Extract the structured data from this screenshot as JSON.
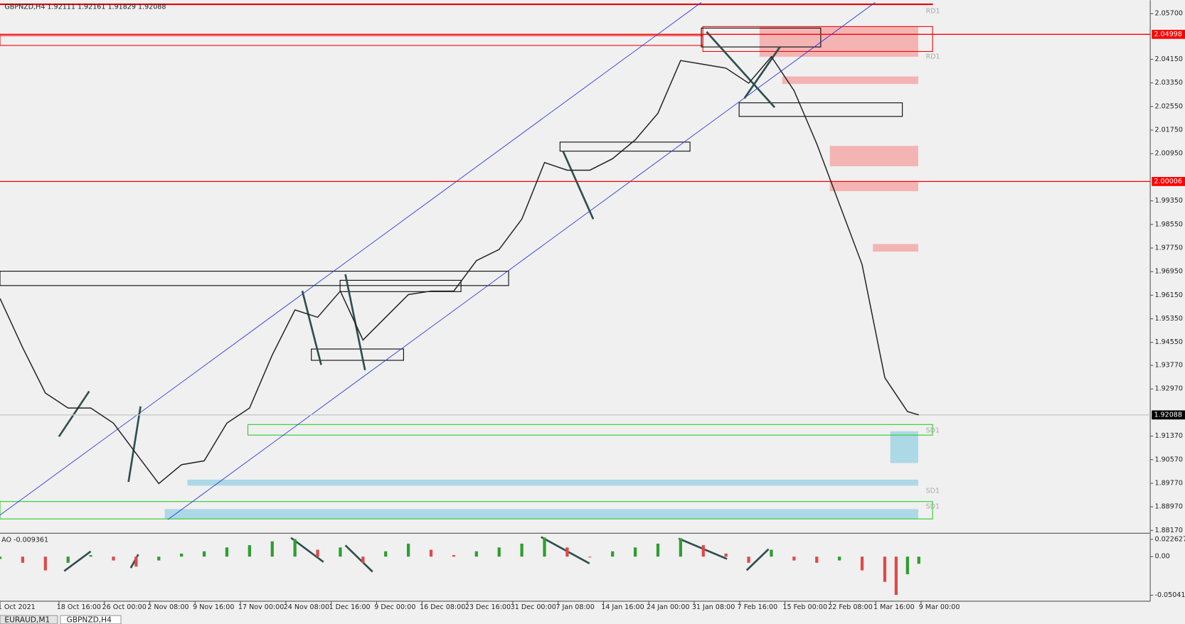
{
  "chart_data": [
    {
      "type": "line",
      "title": "GBPNZD,H4  1.92111 1.92161 1.91829 1.92088",
      "x": [
        0,
        10,
        20,
        30,
        40,
        50,
        60,
        70,
        80,
        90,
        100,
        110,
        120,
        130,
        140,
        150,
        160,
        170,
        180,
        190,
        200,
        210,
        220,
        230,
        240,
        250,
        260,
        270,
        280,
        290,
        300,
        310,
        320,
        330,
        340,
        350,
        360,
        370,
        380,
        390,
        400,
        405
      ],
      "series": [
        {
          "color": "#222222",
          "values": [
            1.9604,
            1.9437,
            1.9283,
            1.9232,
            1.9232,
            1.9181,
            1.9078,
            1.8976,
            1.904,
            1.9053,
            1.9181,
            1.9232,
            1.9412,
            1.9565,
            1.954,
            1.9629,
            1.9463,
            1.954,
            1.9617,
            1.9629,
            1.9629,
            1.9732,
            1.977,
            1.9873,
            2.0065,
            2.0039,
            2.0039,
            2.0078,
            2.0142,
            2.0232,
            2.0411,
            2.0398,
            2.0385,
            2.0334,
            2.0424,
            2.0309,
            2.0129,
            1.9924,
            1.9719,
            1.9335,
            1.922,
            1.92088
          ]
        }
      ],
      "xlim": [
        0,
        507
      ],
      "xticks": [
        {
          "value": 0,
          "label": "1 Oct 2021"
        },
        {
          "value": 26,
          "label": "18 Oct 16:00"
        },
        {
          "value": 46,
          "label": "26 Oct 00:00"
        },
        {
          "value": 66,
          "label": "2 Nov 08:00"
        },
        {
          "value": 86,
          "label": "9 Nov 16:00"
        },
        {
          "value": 106,
          "label": "17 Nov 00:00"
        },
        {
          "value": 126,
          "label": "24 Nov 08:00"
        },
        {
          "value": 146,
          "label": "1 Dec 16:00"
        },
        {
          "value": 166,
          "label": "9 Dec 00:00"
        },
        {
          "value": 186,
          "label": "16 Dec 08:00"
        },
        {
          "value": 206,
          "label": "23 Dec 16:00"
        },
        {
          "value": 226,
          "label": "31 Dec 00:00"
        },
        {
          "value": 246,
          "label": "7 Jan 08:00"
        },
        {
          "value": 266,
          "label": "14 Jan 16:00"
        },
        {
          "value": 286,
          "label": "24 Jan 00:00"
        },
        {
          "value": 306,
          "label": "31 Jan 08:00"
        },
        {
          "value": 326,
          "label": "7 Feb 16:00"
        },
        {
          "value": 346,
          "label": "15 Feb 00:00"
        },
        {
          "value": 366,
          "label": "22 Feb 08:00"
        },
        {
          "value": 386,
          "label": "1 Mar 16:00"
        },
        {
          "value": 406,
          "label": "9 Mar 00:00"
        }
      ],
      "ylim": [
        1.881,
        2.0603
      ],
      "yticks": [
        {
          "value": 2.057,
          "label": "2.05700"
        },
        {
          "value": 2.0415,
          "label": "2.04150"
        },
        {
          "value": 2.0335,
          "label": "2.03350"
        },
        {
          "value": 2.0255,
          "label": "2.02550"
        },
        {
          "value": 2.0175,
          "label": "2.01750"
        },
        {
          "value": 2.0095,
          "label": "2.00950"
        },
        {
          "value": 1.9935,
          "label": "1.99350"
        },
        {
          "value": 1.9855,
          "label": "1.98550"
        },
        {
          "value": 1.9775,
          "label": "1.97750"
        },
        {
          "value": 1.9695,
          "label": "1.96950"
        },
        {
          "value": 1.9615,
          "label": "1.96150"
        },
        {
          "value": 1.9535,
          "label": "1.95350"
        },
        {
          "value": 1.9455,
          "label": "1.94550"
        },
        {
          "value": 1.9377,
          "label": "1.93770"
        },
        {
          "value": 1.9297,
          "label": "1.92970"
        },
        {
          "value": 1.9137,
          "label": "1.91370"
        },
        {
          "value": 1.9057,
          "label": "1.90570"
        },
        {
          "value": 1.8977,
          "label": "1.89770"
        },
        {
          "value": 1.8897,
          "label": "1.88970"
        },
        {
          "value": 1.8817,
          "label": "1.88170"
        }
      ],
      "levels": [
        {
          "value": 2.04998,
          "color": "#ff0000",
          "line_color": "#ff0000"
        },
        {
          "value": 2.00006,
          "color": "#ff0000",
          "line_color": "#ff0000"
        },
        {
          "value": 1.92088,
          "color": "#000000",
          "line_color": "#c8c8c8"
        }
      ],
      "zone_labels": [
        "RD1",
        "RD1",
        "SD1",
        "SD1",
        "SD1"
      ]
    },
    {
      "type": "histogram",
      "title": "AO -0.009361",
      "x": [
        0,
        10,
        20,
        30,
        40,
        50,
        60,
        70,
        80,
        90,
        100,
        110,
        120,
        130,
        140,
        150,
        160,
        170,
        180,
        190,
        200,
        210,
        220,
        230,
        240,
        250,
        260,
        270,
        280,
        290,
        300,
        310,
        320,
        330,
        340,
        350,
        360,
        370,
        380,
        390,
        395,
        400,
        405
      ],
      "values": [
        -0.003,
        -0.008,
        -0.018,
        -0.008,
        0.002,
        -0.005,
        -0.013,
        -0.005,
        0.004,
        0.007,
        0.012,
        0.015,
        0.02,
        0.023,
        0.009,
        0.012,
        -0.008,
        0.007,
        0.017,
        0.009,
        0.002,
        0.007,
        0.012,
        0.017,
        0.025,
        0.012,
        -0.001,
        0.007,
        0.012,
        0.017,
        0.024,
        0.015,
        0.004,
        -0.008,
        0.009,
        -0.005,
        -0.008,
        -0.005,
        -0.018,
        -0.033,
        -0.05,
        -0.023,
        -0.009361
      ],
      "up_color": "#2e9e2e",
      "down_color": "#e04848",
      "xlim": [
        0,
        507
      ],
      "ylim": [
        -0.0573,
        0.0286
      ],
      "yticks": [
        0.022627,
        {
          "value": 0,
          "label": "0.00"
        },
        -0.050411
      ]
    }
  ],
  "tabs": [
    "EURAUD,M1",
    "GBPNZD,H4"
  ]
}
